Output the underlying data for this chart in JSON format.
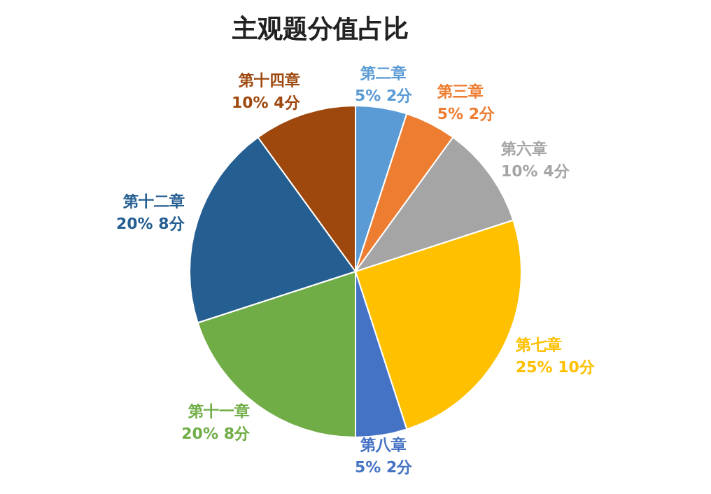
{
  "chart_data": {
    "type": "pie",
    "title": "主观题分值占比",
    "categories": [
      "第二章",
      "第三章",
      "第六章",
      "第七章",
      "第八章",
      "第十一章",
      "第十二章",
      "第十四章"
    ],
    "values": [
      2,
      2,
      4,
      10,
      2,
      8,
      8,
      4
    ],
    "value_labels": [
      "5% 2分",
      "5% 2分",
      "10% 4分",
      "25% 10分",
      "5% 2分",
      "20% 8分",
      "20% 8分",
      "10% 4分"
    ],
    "colors": [
      "#5b9bd5",
      "#ed7d31",
      "#a5a5a5",
      "#ffc000",
      "#4472c4",
      "#70ad47",
      "#255e91",
      "#9e480e"
    ],
    "legend": false
  }
}
